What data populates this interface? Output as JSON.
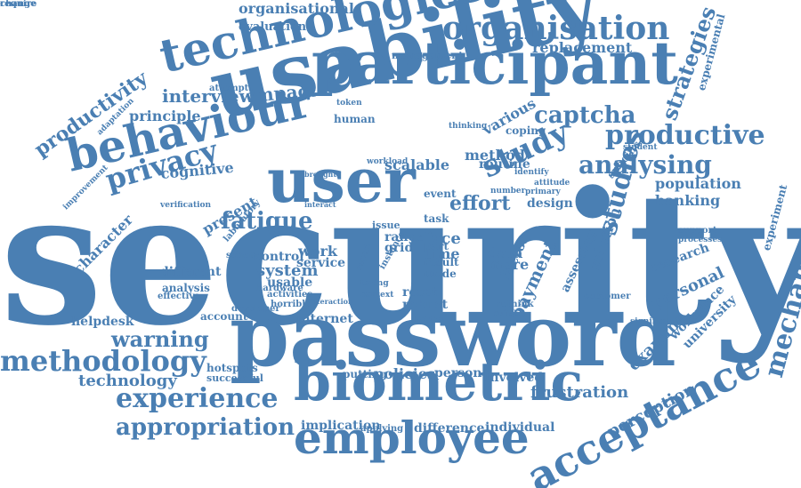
{
  "color": "#4a7fb3",
  "words": [
    "security",
    "password",
    "usability",
    "participant",
    "user",
    "biometric",
    "employee",
    "behaviour",
    "technologies",
    "acceptance",
    "organisation",
    "productive",
    "analysing",
    "study",
    "studies",
    "captcha",
    "privacy",
    "methodology",
    "experience",
    "appropriation",
    "mechanism",
    "warning",
    "strategies",
    "fatigue",
    "effort",
    "productivity",
    "interview",
    "impact",
    "principle",
    "organisational",
    "evaluation",
    "replacement",
    "frustration",
    "perception",
    "technology",
    "personal",
    "population",
    "banking",
    "payment",
    "system",
    "different",
    "data",
    "more",
    "method",
    "scalable",
    "routine",
    "cognitive",
    "present",
    "character",
    "policies",
    "person",
    "examine",
    "workplace",
    "university",
    "research",
    "design",
    "face",
    "time",
    "range",
    "grid",
    "work",
    "service",
    "control",
    "usable",
    "implication",
    "difference",
    "individual",
    "helpdesk",
    "account",
    "internet",
    "hotspots",
    "successful",
    "factor",
    "solution",
    "assessing",
    "experimental",
    "experiment",
    "mode",
    "result",
    "part",
    "issue",
    "task",
    "event",
    "reset",
    "robust",
    "paper",
    "various",
    "coping",
    "human",
    "attempt",
    "management",
    "adaptation",
    "improvement",
    "verification",
    "laboratory",
    "scheme",
    "analysis",
    "effective",
    "activities",
    "hardware",
    "developer",
    "involved",
    "putting",
    "applying",
    "horrible",
    "interaction",
    "rethink",
    "specific",
    "student",
    "support",
    "processes",
    "significant",
    "customer",
    "workload",
    "identify",
    "attitude",
    "primary",
    "number",
    "instance",
    "taxing",
    "context",
    "report",
    "token",
    "thinking",
    "brought",
    "interact",
    "suitable",
    "require",
    "change"
  ]
}
